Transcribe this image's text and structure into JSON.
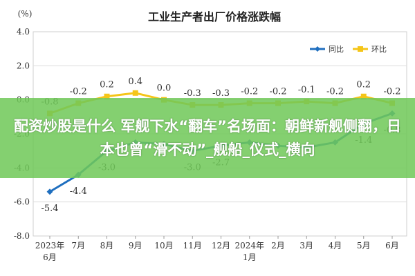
{
  "chart_data": {
    "type": "line",
    "title": "工业生产者出厂价格涨跌幅",
    "ylabel": "(%)",
    "ylim": [
      -8.0,
      4.0
    ],
    "yticks": [
      "4.0",
      "2.0",
      "0.0",
      "-2.0",
      "-4.0",
      "-6.0",
      "-8.0"
    ],
    "categories": [
      "2023年\n6月",
      "7月",
      "8月",
      "9月",
      "10月",
      "11月",
      "12月",
      "2024年\n1月",
      "2月",
      "3月",
      "4月",
      "5月",
      "6月"
    ],
    "grid": true,
    "legend_position": "top-right",
    "series": [
      {
        "name": "同比",
        "color": "#1f6fbf",
        "values": [
          -5.4,
          -4.4,
          -3.0,
          -2.5,
          -2.6,
          -3.0,
          -2.7,
          -2.5,
          -2.7,
          -2.8,
          -2.5,
          -1.4,
          -0.8
        ],
        "labels": [
          "-5.4",
          "-4.4",
          "-3.0",
          "",
          "",
          "-3.0",
          "-2.7",
          "",
          "",
          "",
          "",
          "-1.4",
          "-0.8"
        ]
      },
      {
        "name": "环比",
        "color": "#f5c518",
        "values": [
          -0.8,
          -0.2,
          0.2,
          0.4,
          0.0,
          -0.3,
          -0.3,
          -0.2,
          -0.2,
          -0.1,
          -0.2,
          0.2,
          -0.2
        ],
        "labels": [
          "-0.8",
          "-0.2",
          "0.2",
          "0.4",
          "0.0",
          "-0.3",
          "-0.3",
          "-0.2",
          "-0.2",
          "-0.1",
          "-0.2",
          "0.2",
          "-0.2"
        ]
      }
    ]
  },
  "overlay": {
    "text": "配资炒股是什么 军舰下水“翻车”名场面：朝鲜新舰侧翻，日本也曾“滑不动”_舰船_仪式_横向"
  }
}
